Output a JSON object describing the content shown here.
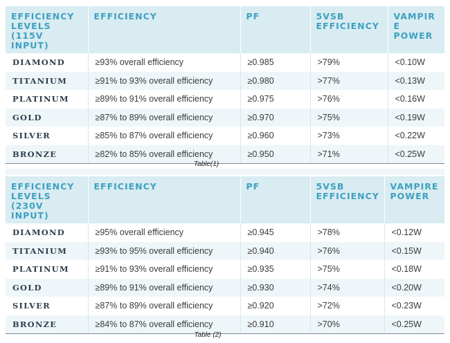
{
  "table1": {
    "headers": [
      "EFFICIENCY LEVELS (115V INPUT)",
      "EFFICIENCY",
      "PF",
      "5VSB EFFICIENCY",
      "VAMPIRE POWER"
    ],
    "rows": [
      [
        "DIAMOND",
        "≥93% overall efficiency",
        "≥0.985",
        ">79%",
        "<0.10W"
      ],
      [
        "TITANIUM",
        "≥91% to 93% overall efficiency",
        "≥0.980",
        ">77%",
        "<0.13W"
      ],
      [
        "PLATINUM",
        "≥89% to 91% overall efficiency",
        "≥0.975",
        ">76%",
        "<0.16W"
      ],
      [
        "GOLD",
        "≥87% to 89% overall efficiency",
        "≥0.970",
        ">75%",
        "<0.19W"
      ],
      [
        "SILVER",
        "≥85% to 87% overall efficiency",
        "≥0.960",
        ">73%",
        "<0.22W"
      ],
      [
        "BRONZE",
        "≥82% to 85% overall efficiency",
        "≥0.950",
        ">71%",
        "<0.25W"
      ]
    ],
    "caption": "Table(1)"
  },
  "table2": {
    "headers": [
      "EFFICIENCY LEVELS (230V INPUT)",
      "EFFICIENCY",
      "PF",
      "5VSB EFFICIENCY",
      "VAMPIRE POWER"
    ],
    "rows": [
      [
        "DIAMOND",
        "≥95% overall efficiency",
        "≥0.945",
        ">78%",
        "<0.12W"
      ],
      [
        "TITANIUM",
        "≥93% to 95% overall efficiency",
        "≥0.940",
        ">76%",
        "<0.15W"
      ],
      [
        "PLATINUM",
        "≥91% to 93% overall efficiency",
        "≥0.935",
        ">75%",
        "<0.18W"
      ],
      [
        "GOLD",
        "≥89% to 91% overall efficiency",
        "≥0.930",
        ">74%",
        "<0.20W"
      ],
      [
        "SILVER",
        "≥87% to 89% overall efficiency",
        "≥0.920",
        ">72%",
        "<0.23W"
      ],
      [
        "BRONZE",
        "≥84% to 87% overall efficiency",
        "≥0.910",
        ">70%",
        "<0.25W"
      ]
    ],
    "caption": "Table (2)"
  },
  "colors": {
    "header_bg": "#d8ecf2",
    "header_text": "#3fa0c0",
    "row_alt_bg": "#eef6f9"
  }
}
